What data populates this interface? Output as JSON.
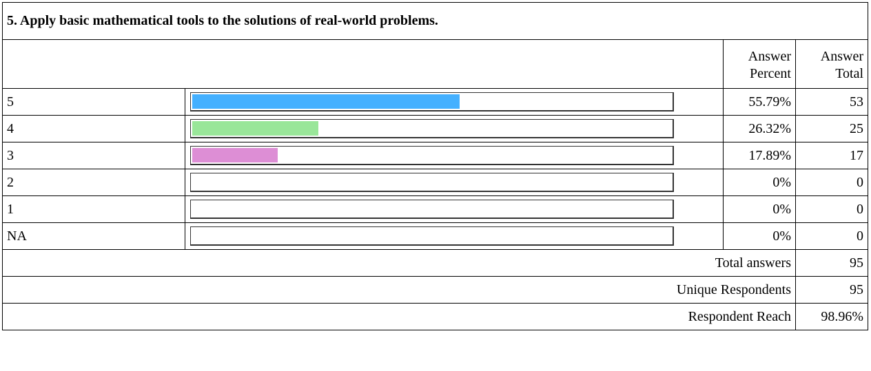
{
  "question": "5. Apply basic mathematical tools to the solutions of real-world problems.",
  "headers": {
    "percent": [
      "Answer",
      "Percent"
    ],
    "total": [
      "Answer",
      "Total"
    ]
  },
  "colors": {
    "5": "#44b0ff",
    "4": "#99e699",
    "3": "#dd8ed5"
  },
  "chart_data": {
    "type": "bar",
    "categories": [
      "5",
      "4",
      "3",
      "2",
      "1",
      "NA"
    ],
    "values": [
      55.79,
      26.32,
      17.89,
      0,
      0,
      0
    ],
    "value_unit": "percent",
    "ylim": [
      0,
      100
    ],
    "percent_labels": [
      "55.79%",
      "26.32%",
      "17.89%",
      "0%",
      "0%",
      "0%"
    ],
    "totals": [
      "53",
      "25",
      "17",
      "0",
      "0",
      "0"
    ]
  },
  "summary": [
    {
      "label": "Total answers",
      "value": "95"
    },
    {
      "label": "Unique Respondents",
      "value": "95"
    },
    {
      "label": "Respondent Reach",
      "value": "98.96%"
    }
  ]
}
